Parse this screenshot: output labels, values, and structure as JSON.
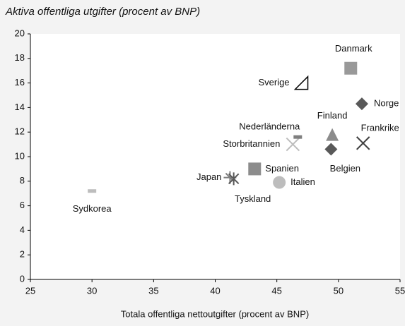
{
  "chart_data": {
    "type": "scatter",
    "title": "Aktiva offentliga utgifter (procent av BNP)",
    "x_label": "Totala offentliga nettoutgifter (procent av BNP)",
    "xlim": [
      25,
      55
    ],
    "xticks": [
      25,
      30,
      35,
      40,
      45,
      50,
      55
    ],
    "ylim": [
      0,
      20
    ],
    "yticks": [
      0,
      2,
      4,
      6,
      8,
      10,
      12,
      14,
      16,
      18,
      20
    ],
    "grid": false,
    "points": [
      {
        "label": "Sydkorea",
        "x": 30,
        "y": 7.2,
        "marker": "dash",
        "color": "#bdbdbd"
      },
      {
        "label": "Japan",
        "x": 41.2,
        "y": 8.3,
        "marker": "plusx",
        "color": "#7f7f7f"
      },
      {
        "label": "Tyskland",
        "x": 41.5,
        "y": 8.2,
        "marker": "star",
        "color": "#595959"
      },
      {
        "label": "Spanien",
        "x": 43.2,
        "y": 9.0,
        "marker": "square",
        "color": "#8c8c8c"
      },
      {
        "label": "Italien",
        "x": 45.2,
        "y": 7.9,
        "marker": "circle",
        "color": "#bdbdbd"
      },
      {
        "label": "Storbritannien",
        "x": 46.3,
        "y": 11.0,
        "marker": "x",
        "color": "#bdbdbd"
      },
      {
        "label": "Nederländerna",
        "x": 46.7,
        "y": 11.6,
        "marker": "dash",
        "color": "#7f7f7f"
      },
      {
        "label": "Sverige",
        "x": 47,
        "y": 16,
        "marker": "triangle-outline",
        "color": "#000000"
      },
      {
        "label": "Danmark",
        "x": 51,
        "y": 17.2,
        "marker": "square",
        "color": "#999999"
      },
      {
        "label": "Finland",
        "x": 49.5,
        "y": 11.8,
        "marker": "triangle",
        "color": "#8c8c8c"
      },
      {
        "label": "Belgien",
        "x": 49.4,
        "y": 10.6,
        "marker": "diamond",
        "color": "#595959"
      },
      {
        "label": "Norge",
        "x": 51.9,
        "y": 14.3,
        "marker": "diamond",
        "color": "#595959"
      },
      {
        "label": "Frankrike",
        "x": 52,
        "y": 11.1,
        "marker": "x",
        "color": "#404040"
      }
    ]
  }
}
